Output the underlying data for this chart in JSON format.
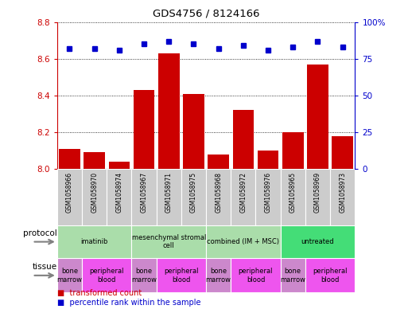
{
  "title": "GDS4756 / 8124166",
  "samples": [
    "GSM1058966",
    "GSM1058970",
    "GSM1058974",
    "GSM1058967",
    "GSM1058971",
    "GSM1058975",
    "GSM1058968",
    "GSM1058972",
    "GSM1058976",
    "GSM1058965",
    "GSM1058969",
    "GSM1058973"
  ],
  "bar_values": [
    8.11,
    8.09,
    8.04,
    8.43,
    8.63,
    8.41,
    8.08,
    8.32,
    8.1,
    8.2,
    8.57,
    8.18
  ],
  "dot_values": [
    82,
    82,
    81,
    85,
    87,
    85,
    82,
    84,
    81,
    83,
    87,
    83
  ],
  "ylim_left": [
    8.0,
    8.8
  ],
  "ylim_right": [
    0,
    100
  ],
  "yticks_left": [
    8.0,
    8.2,
    8.4,
    8.6,
    8.8
  ],
  "yticks_right": [
    0,
    25,
    50,
    75,
    100
  ],
  "bar_color": "#cc0000",
  "dot_color": "#0000cc",
  "bar_base": 8.0,
  "protocols": [
    {
      "label": "imatinib",
      "start": 0,
      "end": 3,
      "color": "#aaddaa"
    },
    {
      "label": "mesenchymal stromal\ncell",
      "start": 3,
      "end": 6,
      "color": "#aaddaa"
    },
    {
      "label": "combined (IM + MSC)",
      "start": 6,
      "end": 9,
      "color": "#aaddaa"
    },
    {
      "label": "untreated",
      "start": 9,
      "end": 12,
      "color": "#44dd77"
    }
  ],
  "tissues": [
    {
      "label": "bone\nmarrow",
      "start": 0,
      "end": 1,
      "color": "#cc88cc"
    },
    {
      "label": "peripheral\nblood",
      "start": 1,
      "end": 3,
      "color": "#ee55ee"
    },
    {
      "label": "bone\nmarrow",
      "start": 3,
      "end": 4,
      "color": "#cc88cc"
    },
    {
      "label": "peripheral\nblood",
      "start": 4,
      "end": 6,
      "color": "#ee55ee"
    },
    {
      "label": "bone\nmarrow",
      "start": 6,
      "end": 7,
      "color": "#cc88cc"
    },
    {
      "label": "peripheral\nblood",
      "start": 7,
      "end": 9,
      "color": "#ee55ee"
    },
    {
      "label": "bone\nmarrow",
      "start": 9,
      "end": 10,
      "color": "#cc88cc"
    },
    {
      "label": "peripheral\nblood",
      "start": 10,
      "end": 12,
      "color": "#ee55ee"
    }
  ],
  "legend_items": [
    {
      "label": "transformed count",
      "color": "#cc0000"
    },
    {
      "label": "percentile rank within the sample",
      "color": "#0000cc"
    }
  ],
  "protocol_label": "protocol",
  "tissue_label": "tissue",
  "sample_box_color": "#cccccc",
  "bg_color": "#ffffff"
}
